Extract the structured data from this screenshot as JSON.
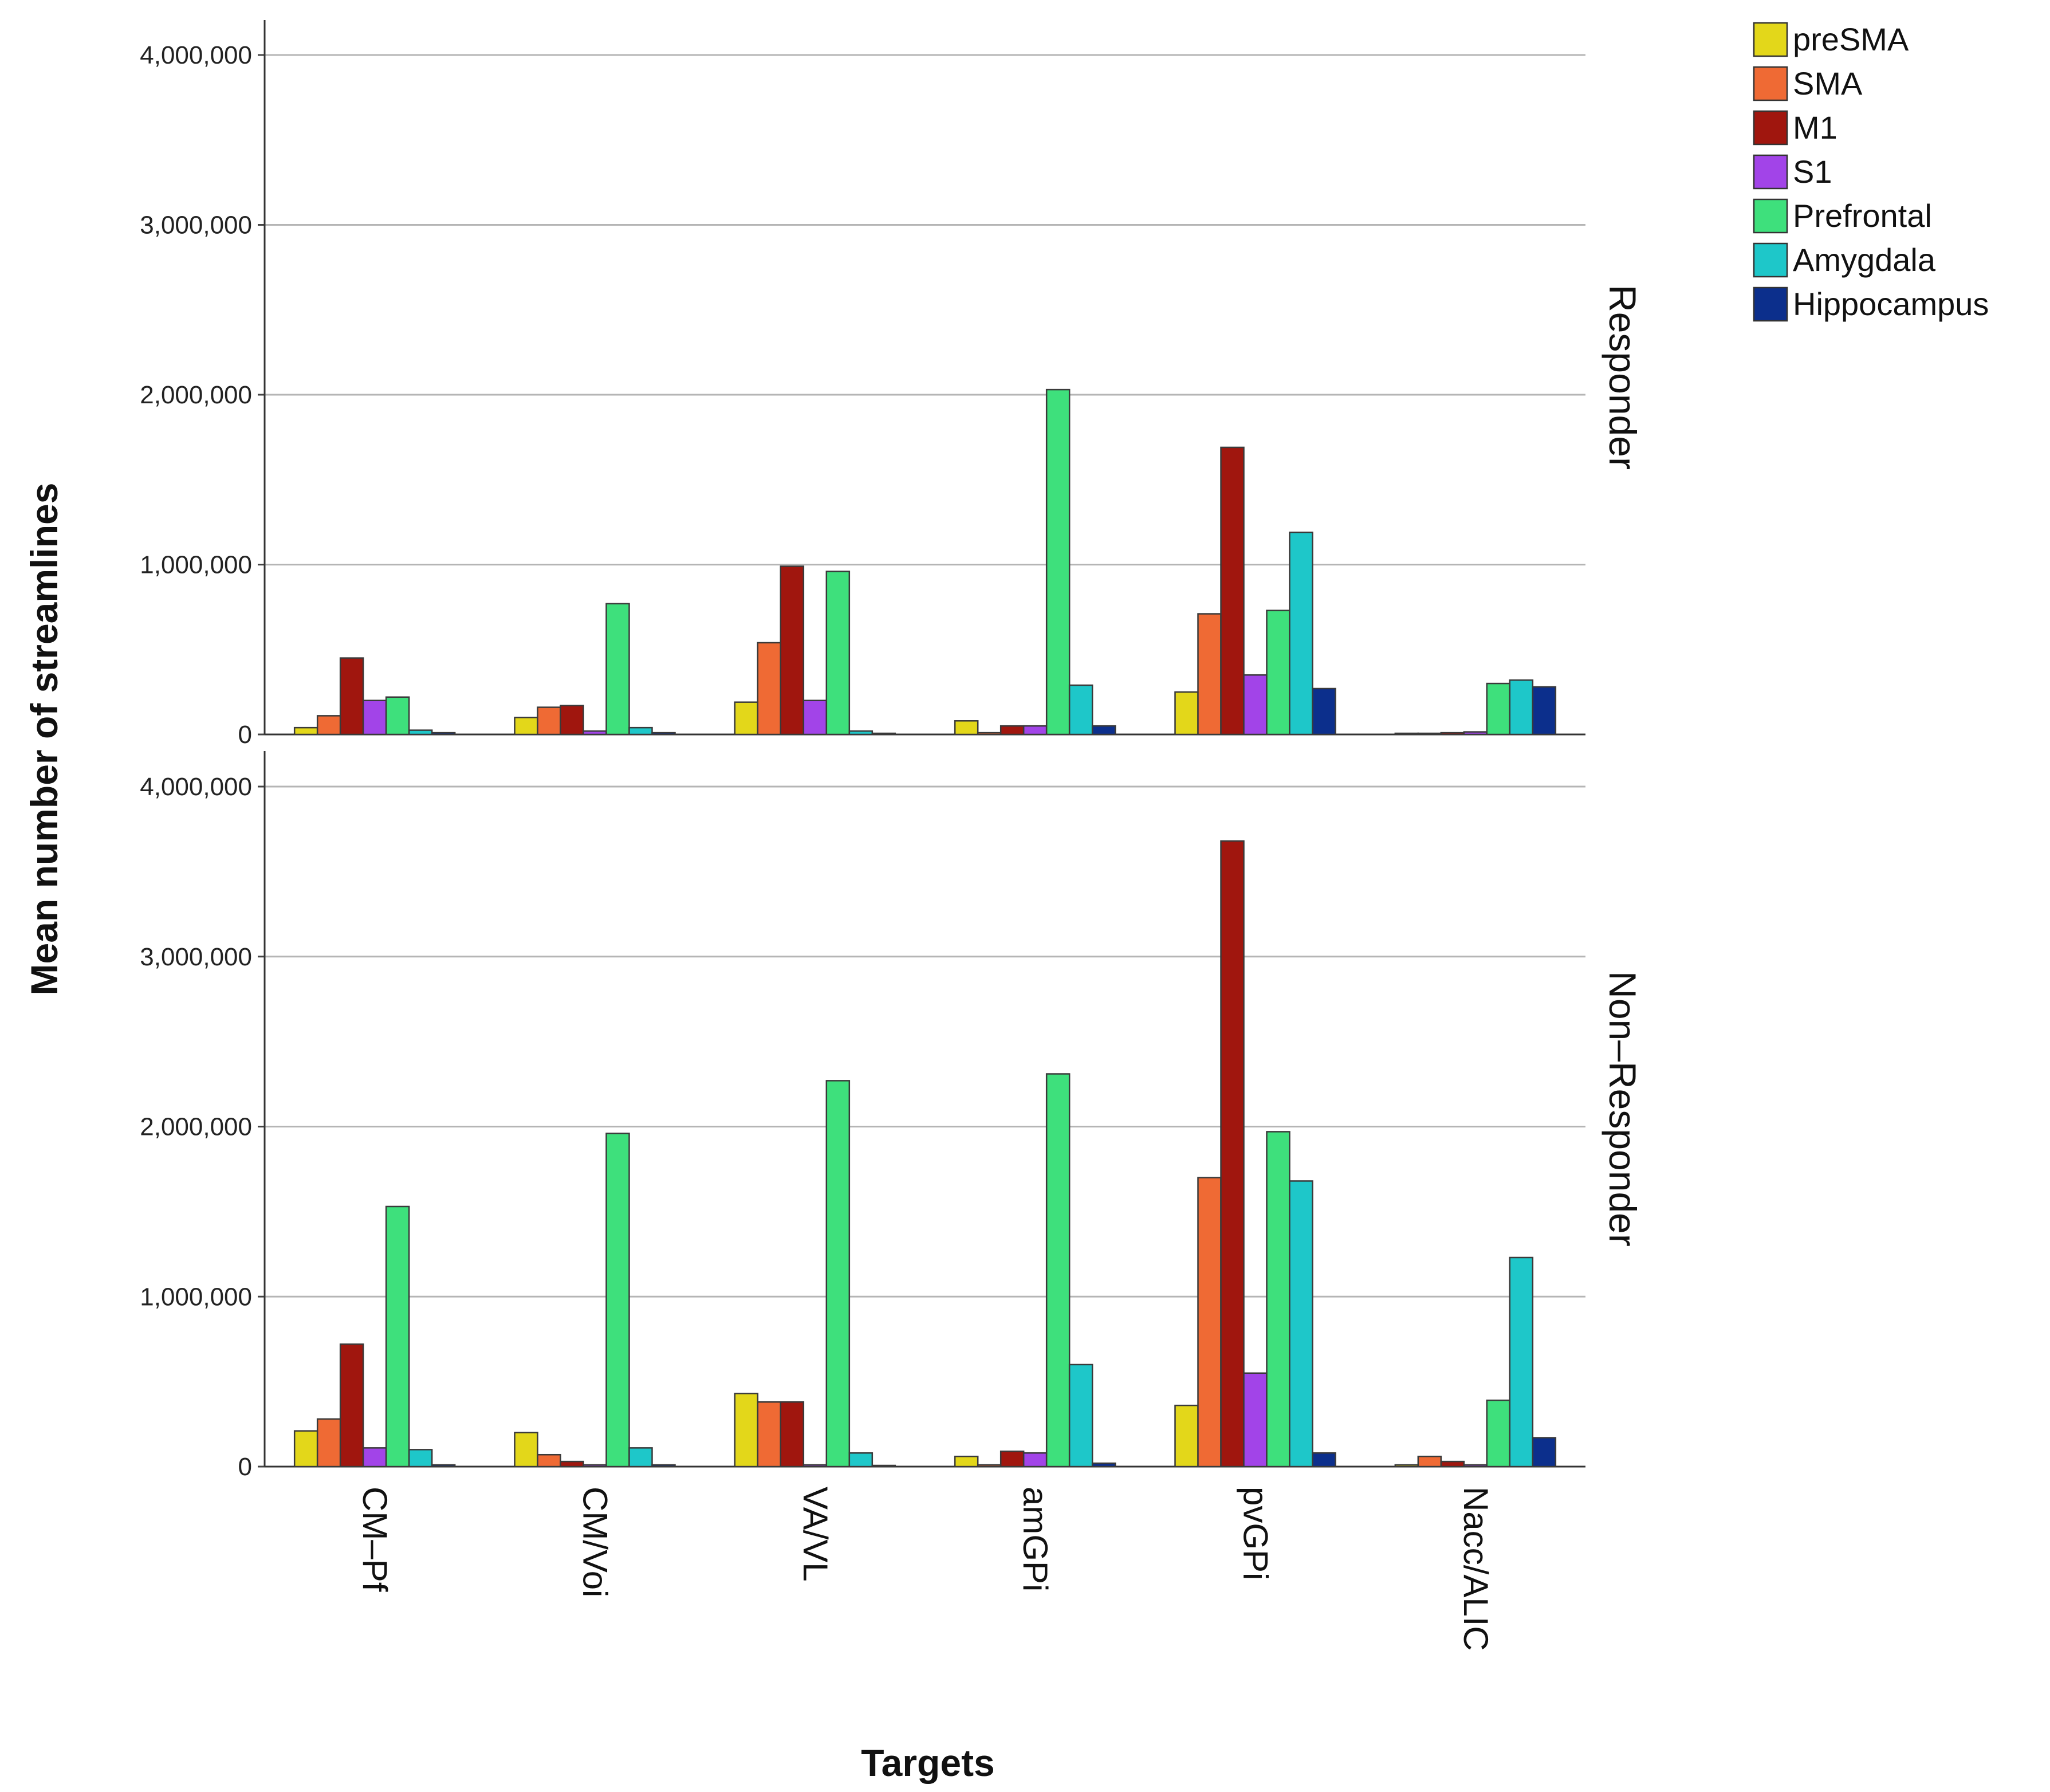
{
  "chart_data": {
    "type": "bar",
    "xlabel": "Targets",
    "ylabel": "Mean number  of streamlines",
    "ylim": [
      0,
      4000000
    ],
    "yticks": [
      0,
      1000000,
      2000000,
      3000000,
      4000000
    ],
    "ytick_labels": [
      "0",
      "1,000,000",
      "2,000,000",
      "3,000,000",
      "4,000,000"
    ],
    "grid": true,
    "legend": "top-right",
    "categories": [
      "CM–Pf",
      "CM/Voi",
      "VA/VL",
      "amGPi",
      "pvGPi",
      "Nacc/ALIC"
    ],
    "series_names": [
      "preSMA",
      "SMA",
      "M1",
      "S1",
      "Prefrontal",
      "Amygdala",
      "Hippocampus"
    ],
    "series_colors": [
      "#e3d71a",
      "#ef6a34",
      "#a0160e",
      "#a244e8",
      "#3ee07c",
      "#1ec7c9",
      "#0c2f8c"
    ],
    "panels": [
      {
        "name": "Responder",
        "series": [
          {
            "name": "preSMA",
            "values": [
              40000,
              100000,
              190000,
              80000,
              250000,
              5000
            ]
          },
          {
            "name": "SMA",
            "values": [
              110000,
              160000,
              540000,
              10000,
              710000,
              5000
            ]
          },
          {
            "name": "M1",
            "values": [
              450000,
              170000,
              990000,
              50000,
              1690000,
              10000
            ]
          },
          {
            "name": "S1",
            "values": [
              200000,
              20000,
              200000,
              50000,
              350000,
              15000
            ]
          },
          {
            "name": "Prefrontal",
            "values": [
              220000,
              770000,
              960000,
              2030000,
              730000,
              300000
            ]
          },
          {
            "name": "Amygdala",
            "values": [
              25000,
              40000,
              20000,
              290000,
              1190000,
              320000
            ]
          },
          {
            "name": "Hippocampus",
            "values": [
              10000,
              10000,
              5000,
              50000,
              270000,
              280000
            ]
          }
        ]
      },
      {
        "name": "Non–Responder",
        "series": [
          {
            "name": "preSMA",
            "values": [
              210000,
              200000,
              430000,
              60000,
              360000,
              10000
            ]
          },
          {
            "name": "SMA",
            "values": [
              280000,
              70000,
              380000,
              10000,
              1700000,
              60000
            ]
          },
          {
            "name": "M1",
            "values": [
              720000,
              30000,
              380000,
              90000,
              3680000,
              30000
            ]
          },
          {
            "name": "S1",
            "values": [
              110000,
              10000,
              10000,
              80000,
              550000,
              10000
            ]
          },
          {
            "name": "Prefrontal",
            "values": [
              1530000,
              1960000,
              2270000,
              2310000,
              1970000,
              390000
            ]
          },
          {
            "name": "Amygdala",
            "values": [
              100000,
              110000,
              80000,
              600000,
              1680000,
              1230000
            ]
          },
          {
            "name": "Hippocampus",
            "values": [
              10000,
              10000,
              5000,
              20000,
              80000,
              170000
            ]
          }
        ]
      }
    ]
  }
}
